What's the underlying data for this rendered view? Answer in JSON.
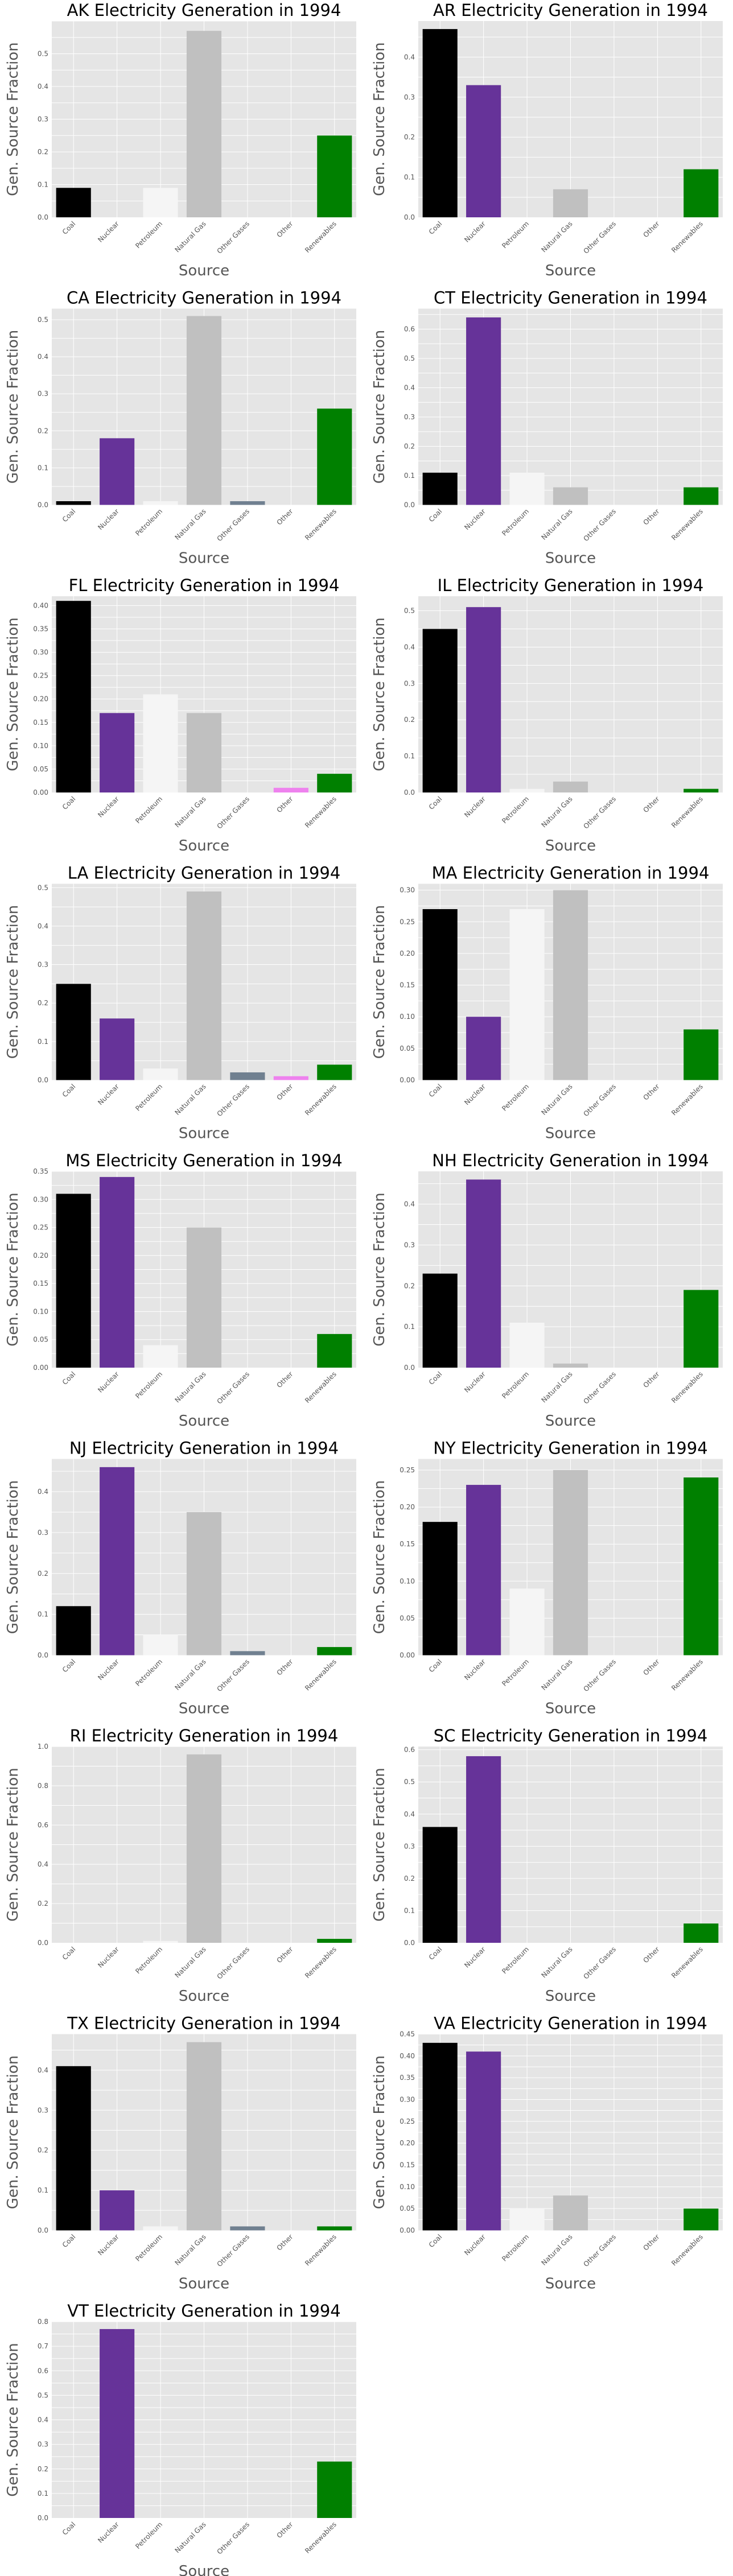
{
  "figure": {
    "xlabel": "Source",
    "ylabel": "Gen. Source Fraction"
  },
  "source_colors": [
    "#000000",
    "#663399",
    "#f5f5f5",
    "#c0c0c0",
    "#708090",
    "#ee82ee",
    "#008000"
  ],
  "chart_data": [
    {
      "type": "bar",
      "title": "AK Electricity Generation in 1994",
      "xlabel": "Source",
      "ylabel": "Gen. Source Fraction",
      "categories": [
        "Coal",
        "Nuclear",
        "Petroleum",
        "Natural Gas",
        "Other Gases",
        "Other",
        "Renewables"
      ],
      "values": [
        0.09,
        0.0,
        0.09,
        0.57,
        0.0,
        0.0,
        0.25
      ],
      "ylim": [
        0,
        0.6
      ],
      "yticks": [
        0,
        0.1,
        0.2,
        0.3,
        0.4,
        0.5
      ],
      "grid": true
    },
    {
      "type": "bar",
      "title": "AR Electricity Generation in 1994",
      "xlabel": "Source",
      "ylabel": "Gen. Source Fraction",
      "categories": [
        "Coal",
        "Nuclear",
        "Petroleum",
        "Natural Gas",
        "Other Gases",
        "Other",
        "Renewables"
      ],
      "values": [
        0.47,
        0.33,
        0.0,
        0.07,
        0.0,
        0.0,
        0.12
      ],
      "ylim": [
        0,
        0.49
      ],
      "yticks": [
        0,
        0.1,
        0.2,
        0.3,
        0.4
      ],
      "grid": true
    },
    {
      "type": "bar",
      "title": "CA Electricity Generation in 1994",
      "xlabel": "Source",
      "ylabel": "Gen. Source Fraction",
      "categories": [
        "Coal",
        "Nuclear",
        "Petroleum",
        "Natural Gas",
        "Other Gases",
        "Other",
        "Renewables"
      ],
      "values": [
        0.01,
        0.18,
        0.01,
        0.51,
        0.01,
        0.0,
        0.26
      ],
      "ylim": [
        0,
        0.53
      ],
      "yticks": [
        0,
        0.1,
        0.2,
        0.3,
        0.4,
        0.5
      ],
      "grid": true
    },
    {
      "type": "bar",
      "title": "CT Electricity Generation in 1994",
      "xlabel": "Source",
      "ylabel": "Gen. Source Fraction",
      "categories": [
        "Coal",
        "Nuclear",
        "Petroleum",
        "Natural Gas",
        "Other Gases",
        "Other",
        "Renewables"
      ],
      "values": [
        0.11,
        0.64,
        0.11,
        0.06,
        0.0,
        0.0,
        0.06
      ],
      "ylim": [
        0,
        0.67
      ],
      "yticks": [
        0,
        0.1,
        0.2,
        0.3,
        0.4,
        0.5,
        0.6
      ],
      "grid": true
    },
    {
      "type": "bar",
      "title": "FL Electricity Generation in 1994",
      "xlabel": "Source",
      "ylabel": "Gen. Source Fraction",
      "categories": [
        "Coal",
        "Nuclear",
        "Petroleum",
        "Natural Gas",
        "Other Gases",
        "Other",
        "Renewables"
      ],
      "values": [
        0.41,
        0.17,
        0.21,
        0.17,
        0.0,
        0.01,
        0.04
      ],
      "ylim": [
        0,
        0.42
      ],
      "yticks": [
        0,
        0.05,
        0.1,
        0.15,
        0.2,
        0.25,
        0.3,
        0.35,
        0.4
      ],
      "grid": true
    },
    {
      "type": "bar",
      "title": "IL Electricity Generation in 1994",
      "xlabel": "Source",
      "ylabel": "Gen. Source Fraction",
      "categories": [
        "Coal",
        "Nuclear",
        "Petroleum",
        "Natural Gas",
        "Other Gases",
        "Other",
        "Renewables"
      ],
      "values": [
        0.45,
        0.51,
        0.01,
        0.03,
        0.0,
        0.0,
        0.01
      ],
      "ylim": [
        0,
        0.54
      ],
      "yticks": [
        0,
        0.1,
        0.2,
        0.3,
        0.4,
        0.5
      ],
      "grid": true
    },
    {
      "type": "bar",
      "title": "LA Electricity Generation in 1994",
      "xlabel": "Source",
      "ylabel": "Gen. Source Fraction",
      "categories": [
        "Coal",
        "Nuclear",
        "Petroleum",
        "Natural Gas",
        "Other Gases",
        "Other",
        "Renewables"
      ],
      "values": [
        0.25,
        0.16,
        0.03,
        0.49,
        0.02,
        0.01,
        0.04
      ],
      "ylim": [
        0,
        0.51
      ],
      "yticks": [
        0,
        0.1,
        0.2,
        0.3,
        0.4,
        0.5
      ],
      "grid": true
    },
    {
      "type": "bar",
      "title": "MA Electricity Generation in 1994",
      "xlabel": "Source",
      "ylabel": "Gen. Source Fraction",
      "categories": [
        "Coal",
        "Nuclear",
        "Petroleum",
        "Natural Gas",
        "Other Gases",
        "Other",
        "Renewables"
      ],
      "values": [
        0.27,
        0.1,
        0.27,
        0.3,
        0.0,
        0.0,
        0.08
      ],
      "ylim": [
        0,
        0.31
      ],
      "yticks": [
        0,
        0.05,
        0.1,
        0.15,
        0.2,
        0.25,
        0.3
      ],
      "grid": true
    },
    {
      "type": "bar",
      "title": "MS Electricity Generation in 1994",
      "xlabel": "Source",
      "ylabel": "Gen. Source Fraction",
      "categories": [
        "Coal",
        "Nuclear",
        "Petroleum",
        "Natural Gas",
        "Other Gases",
        "Other",
        "Renewables"
      ],
      "values": [
        0.31,
        0.34,
        0.04,
        0.25,
        0.0,
        0.0,
        0.06
      ],
      "ylim": [
        0,
        0.35
      ],
      "yticks": [
        0,
        0.05,
        0.1,
        0.15,
        0.2,
        0.25,
        0.3,
        0.35
      ],
      "grid": true
    },
    {
      "type": "bar",
      "title": "NH Electricity Generation in 1994",
      "xlabel": "Source",
      "ylabel": "Gen. Source Fraction",
      "categories": [
        "Coal",
        "Nuclear",
        "Petroleum",
        "Natural Gas",
        "Other Gases",
        "Other",
        "Renewables"
      ],
      "values": [
        0.23,
        0.46,
        0.11,
        0.01,
        0.0,
        0.0,
        0.19
      ],
      "ylim": [
        0,
        0.48
      ],
      "yticks": [
        0,
        0.1,
        0.2,
        0.3,
        0.4
      ],
      "grid": true
    },
    {
      "type": "bar",
      "title": "NJ Electricity Generation in 1994",
      "xlabel": "Source",
      "ylabel": "Gen. Source Fraction",
      "categories": [
        "Coal",
        "Nuclear",
        "Petroleum",
        "Natural Gas",
        "Other Gases",
        "Other",
        "Renewables"
      ],
      "values": [
        0.12,
        0.46,
        0.05,
        0.35,
        0.01,
        0.0,
        0.02
      ],
      "ylim": [
        0,
        0.48
      ],
      "yticks": [
        0,
        0.1,
        0.2,
        0.3,
        0.4
      ],
      "grid": true
    },
    {
      "type": "bar",
      "title": "NY Electricity Generation in 1994",
      "xlabel": "Source",
      "ylabel": "Gen. Source Fraction",
      "categories": [
        "Coal",
        "Nuclear",
        "Petroleum",
        "Natural Gas",
        "Other Gases",
        "Other",
        "Renewables"
      ],
      "values": [
        0.18,
        0.23,
        0.09,
        0.25,
        0.0,
        0.0,
        0.24
      ],
      "ylim": [
        0,
        0.265
      ],
      "yticks": [
        0,
        0.05,
        0.1,
        0.15,
        0.2,
        0.25
      ],
      "grid": true
    },
    {
      "type": "bar",
      "title": "RI Electricity Generation in 1994",
      "xlabel": "Source",
      "ylabel": "Gen. Source Fraction",
      "categories": [
        "Coal",
        "Nuclear",
        "Petroleum",
        "Natural Gas",
        "Other Gases",
        "Other",
        "Renewables"
      ],
      "values": [
        0.0,
        0.0,
        0.01,
        0.96,
        0.0,
        0.0,
        0.02
      ],
      "ylim": [
        0,
        1.0
      ],
      "yticks": [
        0,
        0.2,
        0.4,
        0.6,
        0.8,
        1.0
      ],
      "grid": true
    },
    {
      "type": "bar",
      "title": "SC Electricity Generation in 1994",
      "xlabel": "Source",
      "ylabel": "Gen. Source Fraction",
      "categories": [
        "Coal",
        "Nuclear",
        "Petroleum",
        "Natural Gas",
        "Other Gases",
        "Other",
        "Renewables"
      ],
      "values": [
        0.36,
        0.58,
        0.0,
        0.0,
        0.0,
        0.0,
        0.06
      ],
      "ylim": [
        0,
        0.61
      ],
      "yticks": [
        0,
        0.1,
        0.2,
        0.3,
        0.4,
        0.5,
        0.6
      ],
      "grid": true
    },
    {
      "type": "bar",
      "title": "TX Electricity Generation in 1994",
      "xlabel": "Source",
      "ylabel": "Gen. Source Fraction",
      "categories": [
        "Coal",
        "Nuclear",
        "Petroleum",
        "Natural Gas",
        "Other Gases",
        "Other",
        "Renewables"
      ],
      "values": [
        0.41,
        0.1,
        0.01,
        0.47,
        0.01,
        0.0,
        0.01
      ],
      "ylim": [
        0,
        0.49
      ],
      "yticks": [
        0,
        0.1,
        0.2,
        0.3,
        0.4
      ],
      "grid": true
    },
    {
      "type": "bar",
      "title": "VA Electricity Generation in 1994",
      "xlabel": "Source",
      "ylabel": "Gen. Source Fraction",
      "categories": [
        "Coal",
        "Nuclear",
        "Petroleum",
        "Natural Gas",
        "Other Gases",
        "Other",
        "Renewables"
      ],
      "values": [
        0.43,
        0.41,
        0.05,
        0.08,
        0.0,
        0.0,
        0.05
      ],
      "ylim": [
        0,
        0.45
      ],
      "yticks": [
        0,
        0.05,
        0.1,
        0.15,
        0.2,
        0.25,
        0.3,
        0.35,
        0.4,
        0.45
      ],
      "grid": true
    },
    {
      "type": "bar",
      "title": "VT Electricity Generation in 1994",
      "xlabel": "Source",
      "ylabel": "Gen. Source Fraction",
      "categories": [
        "Coal",
        "Nuclear",
        "Petroleum",
        "Natural Gas",
        "Other Gases",
        "Other",
        "Renewables"
      ],
      "values": [
        0.0,
        0.77,
        0.0,
        0.0,
        0.0,
        0.0,
        0.23
      ],
      "ylim": [
        0,
        0.8
      ],
      "yticks": [
        0,
        0.1,
        0.2,
        0.3,
        0.4,
        0.5,
        0.6,
        0.7,
        0.8
      ],
      "grid": true
    }
  ]
}
